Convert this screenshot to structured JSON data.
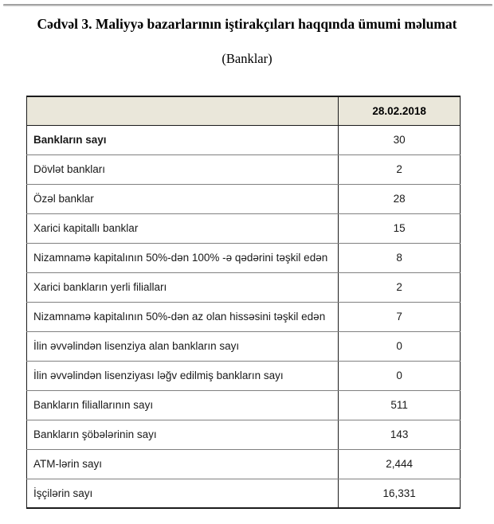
{
  "page": {
    "title": "Cədvəl 3. Maliyyə bazarlarının iştirakçıları haqqında ümumi məlumat",
    "subtitle": "(Banklar)"
  },
  "table": {
    "header": {
      "label_col": "",
      "value_col": "28.02.2018"
    },
    "rows": [
      {
        "label": "Bankların sayı",
        "value": "30",
        "bold": true
      },
      {
        "label": "Dövlət bankları",
        "value": "2",
        "bold": false
      },
      {
        "label": "Özəl banklar",
        "value": "28",
        "bold": false
      },
      {
        "label": "Xarici kapitallı banklar",
        "value": "15",
        "bold": false
      },
      {
        "label": "Nizamnamə kapitalının 50%-dən 100% -ə qədərini təşkil edən",
        "value": "8",
        "bold": false
      },
      {
        "label": "Xarici bankların yerli filialları",
        "value": "2",
        "bold": false
      },
      {
        "label": "Nizamnamə kapitalının 50%-dən az olan hissəsini  təşkil edən",
        "value": "7",
        "bold": false
      },
      {
        "label": "İlin əvvəlindən lisenziya alan bankların sayı",
        "value": "0",
        "bold": false
      },
      {
        "label": "İlin əvvəlindən lisenziyası ləğv edilmiş bankların sayı",
        "value": "0",
        "bold": false
      },
      {
        "label": "Bankların filiallarının sayı",
        "value": "511",
        "bold": false
      },
      {
        "label": "Bankların şöbələrinin sayı",
        "value": "143",
        "bold": false
      },
      {
        "label": "ATM-lərin sayı",
        "value": "2,444",
        "bold": false
      },
      {
        "label": "İşçilərin sayı",
        "value": "16,331",
        "bold": false
      }
    ],
    "colors": {
      "header_bg": "#eae7da",
      "outer_border": "#1b1b1b",
      "row_border": "#808080"
    }
  }
}
